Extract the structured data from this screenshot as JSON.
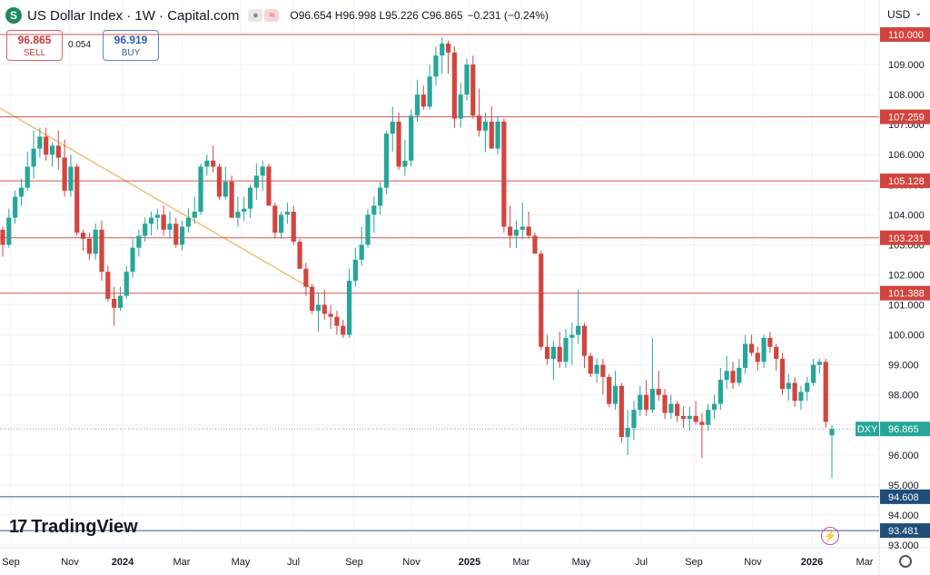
{
  "header": {
    "logo_letter": "S",
    "title": "US Dollar Index · 1W · Capital.com",
    "ohlc": "O96.654 H96.998 L95.226 C96.865",
    "change": "−0.231 (−0.24%)"
  },
  "trade": {
    "sell_price": "96.865",
    "sell_label": "SELL",
    "spread": "0.054",
    "buy_price": "96.919",
    "buy_label": "BUY"
  },
  "currency": "USD",
  "brand": "TradingView",
  "colors": {
    "up": "#26a69a",
    "down": "#d2453f",
    "hline": "#d9534f",
    "blueline": "#2e5f8a",
    "trendline": "#f0c078",
    "label_red": "#d2453f",
    "label_blue": "#1f4e79",
    "label_green": "#26a69a"
  },
  "chart_data": {
    "type": "candlestick",
    "title": "US Dollar Index · 1W · Capital.com",
    "symbol": "DXY",
    "last_price": 96.865,
    "ylim": [
      93.0,
      110.8
    ],
    "y_ticks": [
      93.0,
      94.0,
      95.0,
      96.0,
      97.0,
      98.0,
      99.0,
      100.0,
      101.0,
      102.0,
      103.0,
      104.0,
      105.0,
      106.0,
      107.0,
      108.0,
      109.0,
      110.0
    ],
    "x_ticks": [
      "Sep",
      "Nov",
      "2024",
      "Mar",
      "May",
      "Jul",
      "Sep",
      "Nov",
      "2025",
      "Mar",
      "May",
      "Jul",
      "Sep",
      "Nov",
      "2026",
      "Mar"
    ],
    "horizontal_levels_red": [
      110.0,
      107.259,
      105.128,
      103.231,
      101.388
    ],
    "horizontal_levels_blue": [
      94.608,
      93.481
    ],
    "trendline": {
      "from": [
        "2023-07",
        108.4
      ],
      "to": [
        "2024-08",
        101.5
      ]
    },
    "candles": [
      [
        103.5,
        103.6,
        102.6,
        103.0
      ],
      [
        103.0,
        104.2,
        102.9,
        103.9
      ],
      [
        103.9,
        104.8,
        103.7,
        104.6
      ],
      [
        104.6,
        105.2,
        104.3,
        104.9
      ],
      [
        104.9,
        106.1,
        104.8,
        105.6
      ],
      [
        105.6,
        106.8,
        105.2,
        106.2
      ],
      [
        106.2,
        106.9,
        105.9,
        106.6
      ],
      [
        106.6,
        106.9,
        105.8,
        106.0
      ],
      [
        106.0,
        106.4,
        105.6,
        106.3
      ],
      [
        106.3,
        106.8,
        105.5,
        105.9
      ],
      [
        105.9,
        106.5,
        104.6,
        104.8
      ],
      [
        104.8,
        106.0,
        104.6,
        105.6
      ],
      [
        105.6,
        105.7,
        103.3,
        103.4
      ],
      [
        103.4,
        103.5,
        102.8,
        103.2
      ],
      [
        103.2,
        103.4,
        102.5,
        102.7
      ],
      [
        102.7,
        103.7,
        102.5,
        103.5
      ],
      [
        103.5,
        103.8,
        101.8,
        102.1
      ],
      [
        102.1,
        102.3,
        101.1,
        101.2
      ],
      [
        101.2,
        101.6,
        100.3,
        100.9
      ],
      [
        100.9,
        101.6,
        100.8,
        101.3
      ],
      [
        101.3,
        102.3,
        101.2,
        102.1
      ],
      [
        102.1,
        103.2,
        101.9,
        102.9
      ],
      [
        102.9,
        103.5,
        102.6,
        103.3
      ],
      [
        103.3,
        103.9,
        103.1,
        103.7
      ],
      [
        103.7,
        104.1,
        103.3,
        103.9
      ],
      [
        103.9,
        104.2,
        103.5,
        104.0
      ],
      [
        104.0,
        104.3,
        103.3,
        103.5
      ],
      [
        103.5,
        104.1,
        103.2,
        103.7
      ],
      [
        103.7,
        103.9,
        102.9,
        103.0
      ],
      [
        103.0,
        103.8,
        102.8,
        103.6
      ],
      [
        103.6,
        104.2,
        103.4,
        103.9
      ],
      [
        103.9,
        104.6,
        103.7,
        104.1
      ],
      [
        104.1,
        105.7,
        104.0,
        105.6
      ],
      [
        105.6,
        106.0,
        105.3,
        105.8
      ],
      [
        105.8,
        106.3,
        105.4,
        105.6
      ],
      [
        105.6,
        105.7,
        104.5,
        104.6
      ],
      [
        104.6,
        105.6,
        104.5,
        105.1
      ],
      [
        105.1,
        105.3,
        103.9,
        103.9
      ],
      [
        103.9,
        104.6,
        103.6,
        104.1
      ],
      [
        104.1,
        104.6,
        103.8,
        104.2
      ],
      [
        104.2,
        105.0,
        103.9,
        104.9
      ],
      [
        104.9,
        105.7,
        104.5,
        105.3
      ],
      [
        105.3,
        105.8,
        104.8,
        105.6
      ],
      [
        105.6,
        105.7,
        104.3,
        104.3
      ],
      [
        104.3,
        104.4,
        103.2,
        103.4
      ],
      [
        103.4,
        104.1,
        103.2,
        104.0
      ],
      [
        104.0,
        104.4,
        103.7,
        104.1
      ],
      [
        104.1,
        104.3,
        103.0,
        103.1
      ],
      [
        103.1,
        103.2,
        102.2,
        102.2
      ],
      [
        102.2,
        102.4,
        101.3,
        101.6
      ],
      [
        101.6,
        101.7,
        100.7,
        100.8
      ],
      [
        100.8,
        101.4,
        100.1,
        101.0
      ],
      [
        101.0,
        101.5,
        100.5,
        100.7
      ],
      [
        100.7,
        101.0,
        100.2,
        100.6
      ],
      [
        100.6,
        100.8,
        100.0,
        100.3
      ],
      [
        100.3,
        100.5,
        99.9,
        100.0
      ],
      [
        100.0,
        102.2,
        99.9,
        101.8
      ],
      [
        101.8,
        102.9,
        101.6,
        102.5
      ],
      [
        102.5,
        103.6,
        102.3,
        103.0
      ],
      [
        103.0,
        104.2,
        102.9,
        104.0
      ],
      [
        104.0,
        104.6,
        103.4,
        104.3
      ],
      [
        104.3,
        105.1,
        104.0,
        104.9
      ],
      [
        104.9,
        106.8,
        104.7,
        106.7
      ],
      [
        106.7,
        107.6,
        106.1,
        107.1
      ],
      [
        107.1,
        107.4,
        105.5,
        105.6
      ],
      [
        105.6,
        106.5,
        105.3,
        105.8
      ],
      [
        105.8,
        107.5,
        105.6,
        107.3
      ],
      [
        107.3,
        108.5,
        107.1,
        108.0
      ],
      [
        108.0,
        108.3,
        107.5,
        107.6
      ],
      [
        107.6,
        109.0,
        107.5,
        108.6
      ],
      [
        108.6,
        109.6,
        108.3,
        109.3
      ],
      [
        109.3,
        109.9,
        108.7,
        109.7
      ],
      [
        109.7,
        109.8,
        108.7,
        109.4
      ],
      [
        109.4,
        109.6,
        106.9,
        107.2
      ],
      [
        107.2,
        108.4,
        106.9,
        108.0
      ],
      [
        108.0,
        109.2,
        107.8,
        109.0
      ],
      [
        109.0,
        109.3,
        107.2,
        107.3
      ],
      [
        107.3,
        108.2,
        106.6,
        106.8
      ],
      [
        106.8,
        107.4,
        106.1,
        107.1
      ],
      [
        107.1,
        107.6,
        106.3,
        106.2
      ],
      [
        106.2,
        107.3,
        106.0,
        107.1
      ],
      [
        107.1,
        107.2,
        103.4,
        103.6
      ],
      [
        103.6,
        104.3,
        102.9,
        103.3
      ],
      [
        103.3,
        103.8,
        102.9,
        103.5
      ],
      [
        103.5,
        104.4,
        103.2,
        103.6
      ],
      [
        103.6,
        104.1,
        103.2,
        103.3
      ],
      [
        103.3,
        103.4,
        102.8,
        102.7
      ],
      [
        102.7,
        102.8,
        99.5,
        99.6
      ],
      [
        99.6,
        100.0,
        99.0,
        99.2
      ],
      [
        99.2,
        99.8,
        98.5,
        99.6
      ],
      [
        99.6,
        100.1,
        98.9,
        99.1
      ],
      [
        99.1,
        100.2,
        98.9,
        99.9
      ],
      [
        99.9,
        100.4,
        99.0,
        100.0
      ],
      [
        100.0,
        101.5,
        99.7,
        100.3
      ],
      [
        100.3,
        100.4,
        98.9,
        99.3
      ],
      [
        99.3,
        99.4,
        98.6,
        98.7
      ],
      [
        98.7,
        99.2,
        98.4,
        99.0
      ],
      [
        99.0,
        99.2,
        98.0,
        98.6
      ],
      [
        98.6,
        98.7,
        97.6,
        97.7
      ],
      [
        97.7,
        98.8,
        97.5,
        98.3
      ],
      [
        98.3,
        98.4,
        96.4,
        96.6
      ],
      [
        96.6,
        97.5,
        96.0,
        96.9
      ],
      [
        96.9,
        97.8,
        96.5,
        97.5
      ],
      [
        97.5,
        98.3,
        97.3,
        98.0
      ],
      [
        98.0,
        98.5,
        97.3,
        97.5
      ],
      [
        97.5,
        99.9,
        97.4,
        98.2
      ],
      [
        98.2,
        98.8,
        97.8,
        98.0
      ],
      [
        98.0,
        98.2,
        97.2,
        97.4
      ],
      [
        97.4,
        98.0,
        97.2,
        97.7
      ],
      [
        97.7,
        97.8,
        97.1,
        97.3
      ],
      [
        97.3,
        97.6,
        96.9,
        97.2
      ],
      [
        97.2,
        97.6,
        96.8,
        97.3
      ],
      [
        97.3,
        97.8,
        97.0,
        97.1
      ],
      [
        97.1,
        97.4,
        95.9,
        97.0
      ],
      [
        97.0,
        97.7,
        96.8,
        97.5
      ],
      [
        97.5,
        98.0,
        97.2,
        97.7
      ],
      [
        97.7,
        98.9,
        97.5,
        98.5
      ],
      [
        98.5,
        99.3,
        98.2,
        98.8
      ],
      [
        98.8,
        99.1,
        98.2,
        98.4
      ],
      [
        98.4,
        99.2,
        98.3,
        98.9
      ],
      [
        98.9,
        100.0,
        98.7,
        99.7
      ],
      [
        99.7,
        100.0,
        99.3,
        99.4
      ],
      [
        99.4,
        99.6,
        98.8,
        99.1
      ],
      [
        99.1,
        100.0,
        98.9,
        99.9
      ],
      [
        99.9,
        100.1,
        99.4,
        99.6
      ],
      [
        99.6,
        99.7,
        98.8,
        99.2
      ],
      [
        99.2,
        99.4,
        98.0,
        98.2
      ],
      [
        98.2,
        98.7,
        97.8,
        98.4
      ],
      [
        98.4,
        98.6,
        97.6,
        97.8
      ],
      [
        97.8,
        98.3,
        97.5,
        98.1
      ],
      [
        98.1,
        98.6,
        97.8,
        98.4
      ],
      [
        98.4,
        99.2,
        98.3,
        99.0
      ],
      [
        99.0,
        99.2,
        98.7,
        99.1
      ],
      [
        99.1,
        99.2,
        96.9,
        97.1
      ],
      [
        96.654,
        96.998,
        95.226,
        96.865
      ]
    ]
  }
}
